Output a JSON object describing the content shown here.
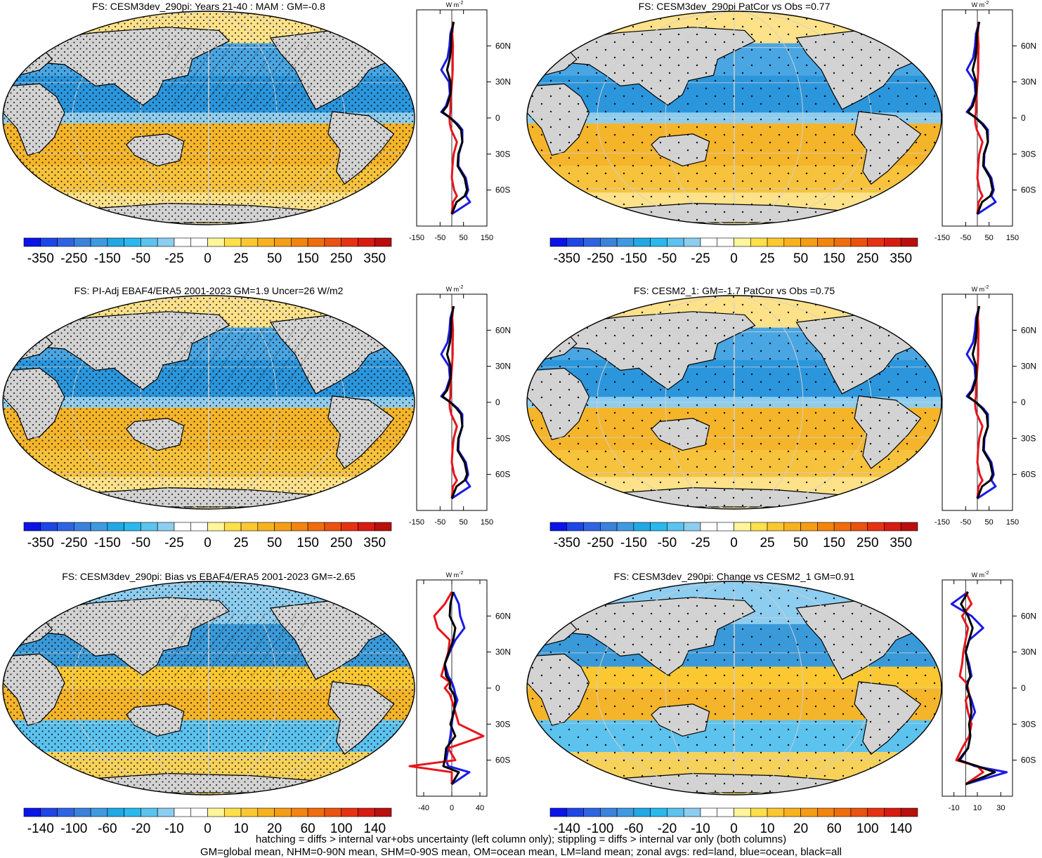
{
  "colors": {
    "land": "#d3d3d3",
    "ocean_positive": "#f5b52a",
    "ocean_negative": "#3a9ad9",
    "curve_land": "#e8141c",
    "curve_ocean": "#1a1ae6",
    "curve_all": "#000000"
  },
  "colorbars": {
    "wide": {
      "colors": [
        "#0a14e6",
        "#1e46e6",
        "#2d64e1",
        "#3a82dc",
        "#3f9ae0",
        "#22a8e4",
        "#2bb8ec",
        "#5cc2ee",
        "#8ccdf0",
        "#ffffff",
        "#ffffff",
        "#fff59a",
        "#ffdf4a",
        "#fbc832",
        "#f7b21e",
        "#f59d14",
        "#f3840e",
        "#ef6d0c",
        "#e9520f",
        "#e63212",
        "#d71b10",
        "#b80f0c"
      ],
      "labels": [
        "-350",
        "-250",
        "-150",
        "-50",
        "-25",
        "0",
        "25",
        "50",
        "150",
        "250",
        "350"
      ]
    },
    "narrow": {
      "colors": [
        "#0a14e6",
        "#1e46e6",
        "#2d64e1",
        "#3a82dc",
        "#3f9ae0",
        "#22a8e4",
        "#2bb8ec",
        "#5cc2ee",
        "#8ccdf0",
        "#ffffff",
        "#ffffff",
        "#fff59a",
        "#ffdf4a",
        "#fbc832",
        "#f7b21e",
        "#f59d14",
        "#f3840e",
        "#ef6d0c",
        "#e9520f",
        "#e63212",
        "#d71b10",
        "#b80f0c"
      ],
      "labels": [
        "-140",
        "-100",
        "-60",
        "-20",
        "-10",
        "0",
        "10",
        "20",
        "60",
        "100",
        "140"
      ]
    }
  },
  "chart_data": [
    {
      "type": "heatmap",
      "title": "FS: CESM3dev_290pi: Years 21-40 : MAM : GM=-0.8",
      "colorbar": "wide",
      "hatching": true,
      "stippling": "dense",
      "zonal": {
        "unit": "W m",
        "unit_sup": "-2",
        "xticks": [
          "-150",
          "-50",
          "50",
          "150"
        ],
        "xlim": [
          -150,
          150
        ],
        "lat_ticks": [
          "60N",
          "30N",
          "0",
          "30S",
          "60S"
        ],
        "lat": [
          80,
          70,
          60,
          50,
          40,
          30,
          20,
          10,
          5,
          0,
          -5,
          -10,
          -20,
          -30,
          -40,
          -50,
          -60,
          -65,
          -70,
          -80
        ],
        "land": [
          5,
          2,
          5,
          4,
          4,
          1,
          -3,
          -6,
          -6,
          -10,
          -8,
          -2,
          22,
          8,
          3,
          0,
          10,
          22,
          5,
          0
        ],
        "ocean": [
          8,
          -6,
          -10,
          -18,
          -45,
          -12,
          -8,
          -25,
          -45,
          -5,
          25,
          45,
          45,
          30,
          28,
          60,
          70,
          60,
          78,
          0
        ],
        "all": [
          8,
          -2,
          -3,
          -8,
          -20,
          -5,
          -5,
          -20,
          -40,
          -6,
          20,
          40,
          45,
          28,
          25,
          55,
          65,
          55,
          20,
          0
        ]
      }
    },
    {
      "type": "heatmap",
      "title": "FS: CESM3dev_290pi PatCor vs Obs =0.77",
      "colorbar": "wide",
      "hatching": false,
      "stippling": "sparse",
      "zonal": {
        "unit": "W m",
        "unit_sup": "-2",
        "xticks": [
          "-150",
          "-50",
          "50",
          "150"
        ],
        "xlim": [
          -150,
          150
        ],
        "lat_ticks": [
          "60N",
          "30N",
          "0",
          "30S",
          "60S"
        ],
        "lat": [
          80,
          70,
          60,
          50,
          40,
          30,
          20,
          10,
          5,
          0,
          -5,
          -10,
          -20,
          -30,
          -40,
          -50,
          -60,
          -65,
          -70,
          -80
        ],
        "land": [
          5,
          2,
          5,
          4,
          4,
          1,
          -3,
          -6,
          -6,
          -10,
          -8,
          -2,
          22,
          8,
          3,
          0,
          10,
          22,
          5,
          0
        ],
        "ocean": [
          8,
          -6,
          -10,
          -18,
          -45,
          -12,
          -8,
          -25,
          -45,
          -5,
          25,
          45,
          45,
          30,
          28,
          60,
          70,
          60,
          78,
          0
        ],
        "all": [
          8,
          -2,
          -3,
          -8,
          -20,
          -5,
          -5,
          -20,
          -40,
          -6,
          20,
          40,
          45,
          28,
          25,
          55,
          65,
          55,
          20,
          0
        ]
      }
    },
    {
      "type": "heatmap",
      "title": "FS: PI-Adj EBAF4/ERA5 2001-2023 GM=1.9 Uncer=26 W/m2",
      "colorbar": "wide",
      "hatching": true,
      "stippling": "dense",
      "zonal": {
        "unit": "W m",
        "unit_sup": "-2",
        "xticks": [
          "-150",
          "-50",
          "50",
          "150"
        ],
        "xlim": [
          -150,
          150
        ],
        "lat_ticks": [
          "60N",
          "30N",
          "0",
          "30S",
          "60S"
        ],
        "lat": [
          80,
          70,
          60,
          50,
          40,
          30,
          20,
          10,
          5,
          0,
          -5,
          -10,
          -20,
          -30,
          -40,
          -50,
          -60,
          -65,
          -70,
          -80
        ],
        "land": [
          5,
          2,
          5,
          4,
          4,
          1,
          -3,
          -6,
          -6,
          -10,
          -8,
          -2,
          22,
          8,
          3,
          0,
          10,
          22,
          5,
          0
        ],
        "ocean": [
          8,
          -6,
          -10,
          -18,
          -45,
          -12,
          -8,
          -25,
          -45,
          -5,
          25,
          45,
          45,
          30,
          28,
          60,
          70,
          60,
          78,
          0
        ],
        "all": [
          8,
          -2,
          -3,
          -8,
          -20,
          -5,
          -5,
          -20,
          -40,
          -6,
          20,
          40,
          45,
          28,
          25,
          55,
          65,
          55,
          20,
          0
        ]
      }
    },
    {
      "type": "heatmap",
      "title": "FS: CESM2_1: GM=-1.7 PatCor vs Obs =0.75",
      "colorbar": "wide",
      "hatching": false,
      "stippling": "sparse",
      "zonal": {
        "unit": "W m",
        "unit_sup": "-2",
        "xticks": [
          "-150",
          "-50",
          "50",
          "150"
        ],
        "xlim": [
          -150,
          150
        ],
        "lat_ticks": [
          "60N",
          "30N",
          "0",
          "30S",
          "60S"
        ],
        "lat": [
          80,
          70,
          60,
          50,
          40,
          30,
          20,
          10,
          5,
          0,
          -5,
          -10,
          -20,
          -30,
          -40,
          -50,
          -60,
          -65,
          -70,
          -80
        ],
        "land": [
          5,
          2,
          5,
          4,
          4,
          1,
          -3,
          -6,
          -6,
          -10,
          -8,
          -2,
          22,
          8,
          3,
          0,
          10,
          22,
          5,
          0
        ],
        "ocean": [
          8,
          -6,
          -10,
          -18,
          -45,
          -12,
          -8,
          -25,
          -45,
          -5,
          25,
          45,
          45,
          30,
          28,
          60,
          70,
          60,
          78,
          0
        ],
        "all": [
          8,
          -2,
          -3,
          -8,
          -20,
          -5,
          -5,
          -20,
          -40,
          -6,
          20,
          40,
          45,
          28,
          25,
          55,
          65,
          55,
          20,
          0
        ]
      }
    },
    {
      "type": "heatmap",
      "title": "FS: CESM3dev_290pi: Bias vs EBAF4/ERA5 2001-2023 GM=-2.65",
      "colorbar": "narrow",
      "hatching": true,
      "stippling": "dense",
      "zonal": {
        "unit": "W m",
        "unit_sup": "-2",
        "xticks": [
          "-40",
          "0",
          "40"
        ],
        "xlim": [
          -50,
          50
        ],
        "lat_ticks": [
          "60N",
          "30N",
          "0",
          "30S",
          "60S"
        ],
        "lat": [
          80,
          70,
          60,
          50,
          40,
          30,
          20,
          10,
          5,
          0,
          -5,
          -10,
          -20,
          -30,
          -40,
          -50,
          -60,
          -65,
          -70,
          -80
        ],
        "land": [
          0,
          -10,
          -25,
          -20,
          -3,
          -5,
          -10,
          -15,
          -3,
          -10,
          -3,
          0,
          5,
          10,
          45,
          -5,
          5,
          -60,
          0,
          0
        ],
        "ocean": [
          2,
          10,
          12,
          18,
          5,
          -3,
          -10,
          -5,
          0,
          3,
          5,
          8,
          2,
          0,
          -2,
          -5,
          -8,
          -5,
          25,
          0
        ],
        "all": [
          2,
          -2,
          -3,
          5,
          2,
          -4,
          -10,
          -8,
          -2,
          -3,
          3,
          5,
          3,
          -2,
          5,
          -8,
          -10,
          -12,
          10,
          0
        ]
      }
    },
    {
      "type": "heatmap",
      "title": "FS: CESM3dev_290pi: Change vs CESM2_1 GM=0.91",
      "colorbar": "narrow",
      "hatching": false,
      "stippling": "sparse",
      "zonal": {
        "unit": "W m",
        "unit_sup": "-2",
        "xticks": [
          "-10",
          "10",
          "30"
        ],
        "xlim": [
          -20,
          40
        ],
        "lat_ticks": [
          "60N",
          "30N",
          "0",
          "30S",
          "60S"
        ],
        "lat": [
          80,
          70,
          60,
          50,
          40,
          30,
          20,
          10,
          5,
          0,
          -5,
          -10,
          -20,
          -30,
          -40,
          -50,
          -60,
          -65,
          -70,
          -80
        ],
        "land": [
          0,
          5,
          -3,
          2,
          0,
          -2,
          -3,
          -5,
          0,
          2,
          3,
          0,
          2,
          5,
          3,
          -3,
          -8,
          10,
          15,
          0
        ],
        "ocean": [
          2,
          -12,
          5,
          15,
          3,
          0,
          3,
          5,
          1,
          1,
          3,
          5,
          8,
          3,
          4,
          2,
          -5,
          8,
          35,
          0
        ],
        "all": [
          2,
          -4,
          2,
          6,
          3,
          0,
          2,
          4,
          2,
          1,
          3,
          4,
          5,
          3,
          4,
          2,
          -6,
          10,
          25,
          0
        ]
      }
    }
  ],
  "footer": {
    "line1": "hatching = diffs > internal var+obs uncertainty (left column only); stippling = diffs > internal var only (both columns)",
    "line2": "GM=global mean, NHM=0-90N mean, SHM=0-90S mean, OM=ocean mean, LM=land mean; zonal avgs: red=land, blue=ocean, black=all"
  }
}
